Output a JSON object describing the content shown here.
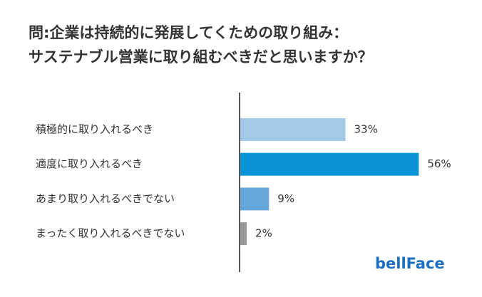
{
  "chart_data": {
    "type": "hbar",
    "title": [
      "問:企業は持続的に発展してくための取り組み：",
      "サステナブル営業に取り組むべきだと思いますか？"
    ],
    "categories": [
      "積極的に取り入れるべき",
      "適度に取り入れるべき",
      "あまり取り入れるべきでない",
      "まったく取り入れるべきでない"
    ],
    "values": [
      33,
      56,
      9,
      2
    ],
    "value_labels": [
      "33%",
      "56%",
      "9%",
      "2%"
    ],
    "colors": [
      "#a3c9e8",
      "#0995d8",
      "#67a6d9",
      "#999999"
    ],
    "brand": "bellFace"
  }
}
